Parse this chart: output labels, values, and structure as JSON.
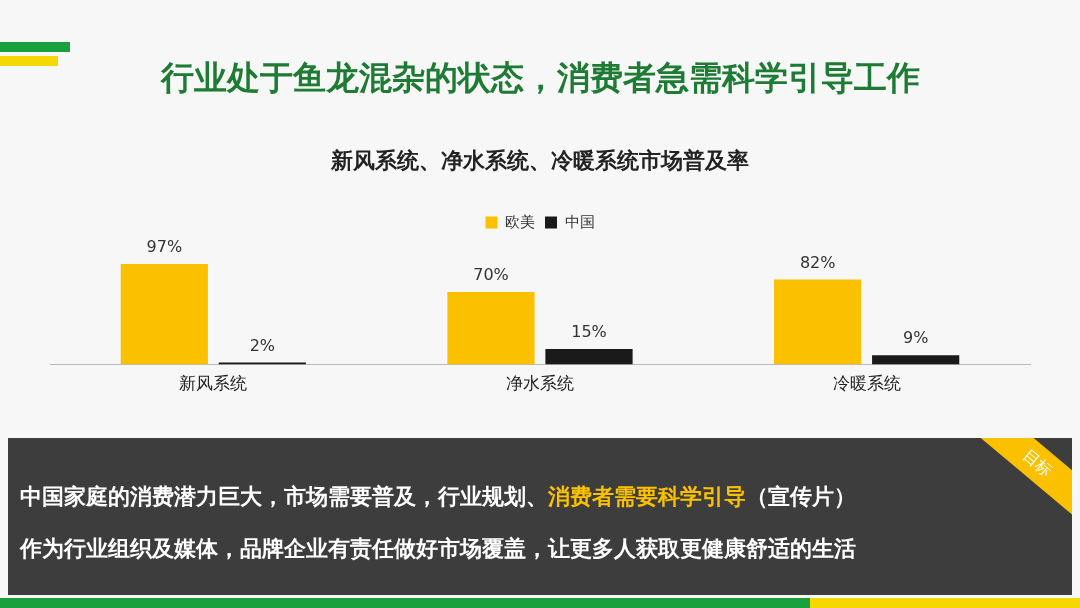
{
  "chart_data": {
    "type": "bar",
    "title": "行业处于鱼龙混杂的状态，消费者急需科学引导工作",
    "subtitle": "新风系统、净水系统、冷暖系统市场普及率",
    "categories": [
      "新风系统",
      "净水系统",
      "冷暖系统"
    ],
    "series": [
      {
        "name": "欧美",
        "color": "#fbc000",
        "values": [
          97,
          70,
          82
        ],
        "value_labels": [
          "97%",
          "70%",
          "82%"
        ]
      },
      {
        "name": "中国",
        "color": "#1a1a1a",
        "values": [
          2,
          15,
          9
        ],
        "value_labels": [
          "2%",
          "15%",
          "9%"
        ]
      }
    ],
    "legend": "top",
    "grid": false,
    "tick_labels": "x",
    "annotations": [
      "中国家庭的消费潜力巨大，市场需要普及，行业规划、",
      "消费者需要科学引导",
      "（宣传片）",
      "作为行业组织及媒体，品牌企业有责任做好市场覆盖，让更多人获取更健康舒适的生活",
      "目标"
    ]
  }
}
